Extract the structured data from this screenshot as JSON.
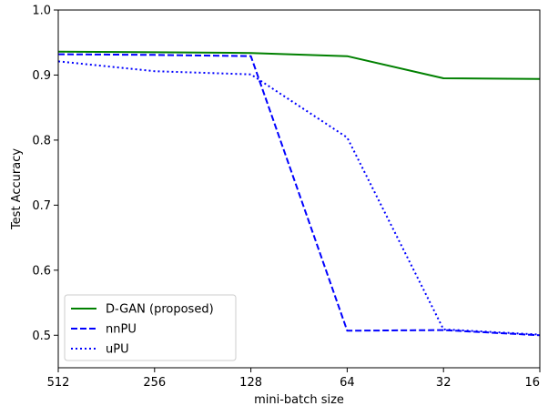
{
  "chart_data": {
    "type": "line",
    "title": "",
    "xlabel": "mini-batch size",
    "ylabel": "Test Accuracy",
    "categories": [
      "512",
      "256",
      "128",
      "64",
      "32",
      "16"
    ],
    "ylim": [
      0.45,
      1.0
    ],
    "yticks": [
      "0.5",
      "0.6",
      "0.7",
      "0.8",
      "0.9",
      "1.0"
    ],
    "grid": false,
    "legend_position": "lower-left",
    "series": [
      {
        "name": "D-GAN (proposed)",
        "color": "#008000",
        "style": "solid",
        "values": [
          0.936,
          0.935,
          0.934,
          0.929,
          0.895,
          0.894
        ]
      },
      {
        "name": "nnPU",
        "color": "#0000ff",
        "style": "dashed",
        "values": [
          0.932,
          0.931,
          0.929,
          0.507,
          0.508,
          0.5
        ]
      },
      {
        "name": "uPU",
        "color": "#0000ff",
        "style": "dotted",
        "values": [
          0.921,
          0.906,
          0.901,
          0.804,
          0.509,
          0.501
        ]
      }
    ]
  }
}
